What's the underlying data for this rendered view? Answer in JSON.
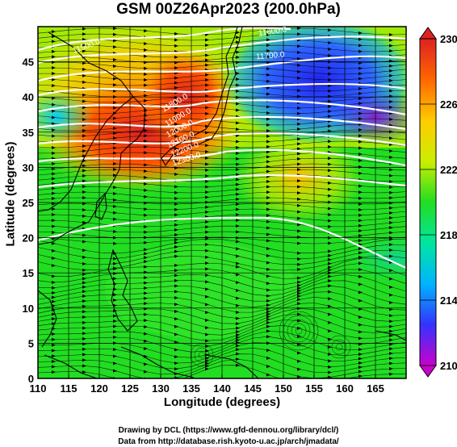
{
  "title": "GSM 00Z26Apr2023 (200.0hPa)",
  "xlabel": "Longitude (degrees)",
  "ylabel": "Latitude  (degrees)",
  "credits": [
    "Drawing by DCL (https://www.gfd-dennou.org/library/dcl/)",
    "Data from http://database.rish.kyoto-u.ac.jp/arch/jmadata/"
  ],
  "chart_data": {
    "type": "heatmap",
    "variable": "temperature with geopotential height contours and wind streamlines",
    "x_ticks": [
      "110",
      "115",
      "120",
      "125",
      "130",
      "135",
      "140",
      "145",
      "150",
      "155",
      "160",
      "165"
    ],
    "y_ticks": [
      "0",
      "5",
      "10",
      "15",
      "20",
      "25",
      "30",
      "35",
      "40",
      "45"
    ],
    "xlim": [
      110,
      170
    ],
    "ylim": [
      0,
      50
    ],
    "colorbar": {
      "min": 210,
      "max": 230,
      "ticks": [
        "210",
        "214",
        "218",
        "222",
        "226",
        "230"
      ],
      "colors": [
        "#cc00cc",
        "#3333ff",
        "#00b4ff",
        "#00e6a0",
        "#22dd22",
        "#ccee00",
        "#ffcc00",
        "#ff6600",
        "#dd2222"
      ]
    },
    "contour_labels": [
      {
        "text": "11500.0"
      },
      {
        "text": "11600.0"
      },
      {
        "text": "11700.0"
      },
      {
        "text": "11800.0"
      },
      {
        "text": "11900.0"
      },
      {
        "text": "12000.0"
      },
      {
        "text": "12100.0"
      },
      {
        "text": "12200.0"
      },
      {
        "text": "12300.0"
      }
    ]
  }
}
